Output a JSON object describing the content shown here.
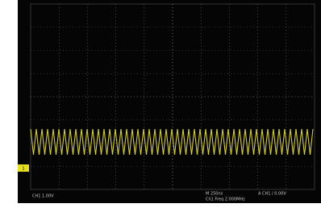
{
  "screen": {
    "channel_marker": "1",
    "channel_scale": "CH1 1.00V",
    "timebase": "M 250ns",
    "trigger": "A CH1 / 0.00V",
    "measurement": "Ch1 Freq 2.000MHz"
  }
}
